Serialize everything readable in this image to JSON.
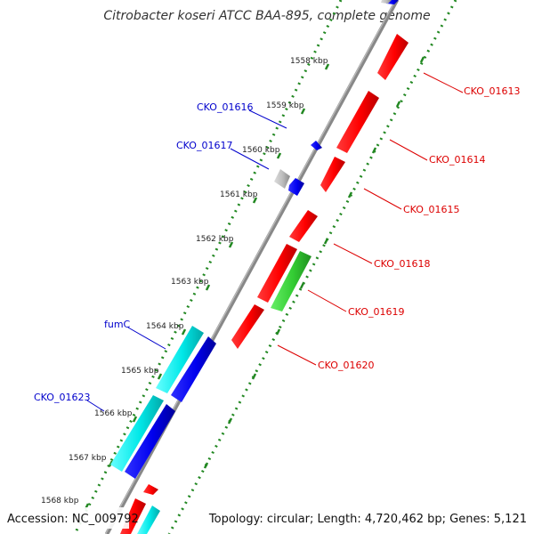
{
  "title": "Citrobacter koseri ATCC BAA-895, complete genome",
  "footer": {
    "accession": "Accession: NC_009792",
    "topology": "Topology: circular; Length: 4,720,462 bp; Genes: 5,121"
  },
  "colors": {
    "reverse_strand_gene": "#ff0000",
    "forward_strand_gene": "#0000ee",
    "fumC": "#00e8e8",
    "CKO_01619": "#33cc33",
    "unlabeled_feature": "#bbbbbb",
    "forward_labels": "#0000cc",
    "reverse_labels": "#dd0000",
    "ticks": "#228822"
  },
  "ticks": [
    {
      "label": "1558 kbp"
    },
    {
      "label": "1559 kbp"
    },
    {
      "label": "1560 kbp"
    },
    {
      "label": "1561 kbp"
    },
    {
      "label": "1562 kbp"
    },
    {
      "label": "1563 kbp"
    },
    {
      "label": "1564 kbp"
    },
    {
      "label": "1565 kbp"
    },
    {
      "label": "1566 kbp"
    },
    {
      "label": "1567 kbp"
    },
    {
      "label": "1568 kbp"
    }
  ],
  "forward_labels": [
    "CKO_01616",
    "CKO_01617",
    "fumC",
    "CKO_01623"
  ],
  "reverse_labels": [
    "CKO_01613",
    "CKO_01614",
    "CKO_01615",
    "CKO_01618",
    "CKO_01619",
    "CKO_01620"
  ]
}
